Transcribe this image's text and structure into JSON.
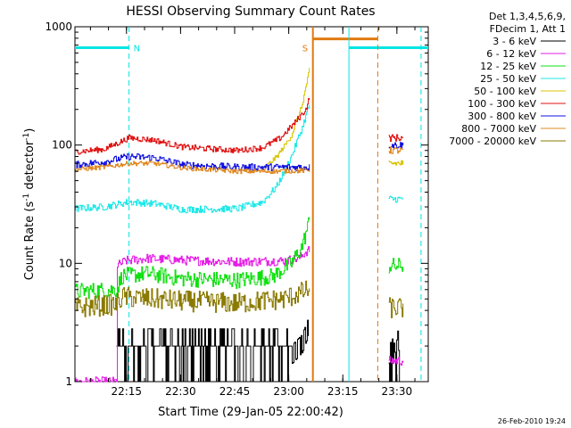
{
  "chart_data": {
    "type": "line",
    "title": "HESSI Observing Summary Count Rates",
    "xlabel": "Start Time (29-Jan-05 22:00:42)",
    "ylabel_main": "Count Rate (s",
    "ylabel_sup1": "-1",
    "ylabel_mid": " detector",
    "ylabel_sup2": "-1",
    "ylabel_end": ")",
    "y_scale": "log",
    "ylim": [
      1,
      1000
    ],
    "xlim_minutes": [
      0,
      98
    ],
    "y_ticks": [
      {
        "label": "1000",
        "value": 1000
      },
      {
        "label": "100",
        "value": 100
      },
      {
        "label": "10",
        "value": 10
      },
      {
        "label": "1",
        "value": 1
      }
    ],
    "x_ticks": [
      {
        "label": "22:15",
        "minutes": 14.3
      },
      {
        "label": "22:30",
        "minutes": 29.3
      },
      {
        "label": "22:45",
        "minutes": 44.3
      },
      {
        "label": "23:00",
        "minutes": 59.3
      },
      {
        "label": "23:15",
        "minutes": 74.3
      },
      {
        "label": "23:30",
        "minutes": 89.3
      }
    ],
    "legend_header": [
      "Det 1,3,4,5,6,9,",
      "FDecim 1, Att 1"
    ],
    "legend_placement": "right",
    "footer_date": "26-Feb-2010 19:24",
    "flags": {
      "night_label": "N",
      "saa_label": "S",
      "night_color": "#00e5e5",
      "saa_color": "#e07a10",
      "night_bars": [
        [
          0,
          15
        ],
        [
          76,
          98
        ]
      ],
      "night_lines": [
        15,
        76,
        96
      ],
      "saa_bar": [
        66,
        84
      ],
      "saa_lines": [
        66,
        84
      ],
      "data_gap": [
        65,
        87
      ],
      "level": 665
    },
    "series": [
      {
        "name": "3 - 6 keV",
        "color": "#000000",
        "points": [
          [
            11.5,
            1
          ],
          [
            13,
            2
          ],
          [
            60,
            2
          ],
          [
            63,
            2.5
          ],
          [
            64.8,
            3.5
          ]
        ],
        "noise": 0.35,
        "end_points": [
          [
            87,
            1.2
          ],
          [
            91,
            1.2
          ]
        ]
      },
      {
        "name": "6 - 12 keV",
        "color": "#e61ee6",
        "points": [
          [
            0,
            1
          ],
          [
            11.5,
            1
          ],
          [
            11.6,
            9.5
          ],
          [
            14,
            10.5
          ],
          [
            20,
            11
          ],
          [
            30,
            10.6
          ],
          [
            45,
            10.3
          ],
          [
            58,
            10.5
          ],
          [
            62,
            11
          ],
          [
            64,
            12.5
          ],
          [
            65,
            13
          ]
        ],
        "noise": 0.04,
        "end_points": [
          [
            87,
            1.5
          ],
          [
            91,
            1.5
          ]
        ]
      },
      {
        "name": "12 - 25 keV",
        "color": "#10e010",
        "points": [
          [
            0,
            5.8
          ],
          [
            11.5,
            6
          ],
          [
            13,
            7.8
          ],
          [
            20,
            8.2
          ],
          [
            30,
            7.4
          ],
          [
            45,
            7.2
          ],
          [
            55,
            7.8
          ],
          [
            60,
            10
          ],
          [
            63,
            14
          ],
          [
            65,
            23
          ]
        ],
        "noise": 0.07,
        "end_points": [
          [
            87,
            9.5
          ],
          [
            91,
            9.5
          ]
        ]
      },
      {
        "name": "25 - 50 keV",
        "color": "#20e8e8",
        "points": [
          [
            0,
            29
          ],
          [
            8,
            30
          ],
          [
            15,
            33
          ],
          [
            22,
            32
          ],
          [
            30,
            28.5
          ],
          [
            45,
            29
          ],
          [
            52,
            33
          ],
          [
            56,
            45
          ],
          [
            60,
            80
          ],
          [
            63,
            140
          ],
          [
            65,
            220
          ]
        ],
        "noise": 0.03,
        "end_points": [
          [
            87,
            35
          ],
          [
            91,
            35
          ]
        ]
      },
      {
        "name": "50 - 100 keV",
        "color": "#d8c400",
        "points": [
          [
            52,
            62
          ],
          [
            56,
            80
          ],
          [
            60,
            120
          ],
          [
            63,
            220
          ],
          [
            65,
            430
          ]
        ],
        "noise": 0.02,
        "end_points": [
          [
            87,
            70
          ],
          [
            91,
            70
          ]
        ]
      },
      {
        "name": "100 - 300 keV",
        "color": "#e01010",
        "points": [
          [
            0,
            88
          ],
          [
            8,
            92
          ],
          [
            15,
            115
          ],
          [
            22,
            110
          ],
          [
            30,
            96
          ],
          [
            45,
            90
          ],
          [
            52,
            95
          ],
          [
            57,
            115
          ],
          [
            61,
            155
          ],
          [
            64,
            200
          ],
          [
            65,
            250
          ]
        ],
        "noise": 0.025,
        "end_points": [
          [
            87,
            115
          ],
          [
            91,
            115
          ]
        ]
      },
      {
        "name": "300 - 800 keV",
        "color": "#1010e0",
        "points": [
          [
            0,
            68
          ],
          [
            8,
            72
          ],
          [
            15,
            80
          ],
          [
            22,
            78
          ],
          [
            30,
            68
          ],
          [
            45,
            65
          ],
          [
            55,
            65
          ],
          [
            65,
            65
          ]
        ],
        "noise": 0.03,
        "end_points": [
          [
            87,
            100
          ],
          [
            91,
            98
          ]
        ]
      },
      {
        "name": "800 - 7000 keV",
        "color": "#e08820",
        "points": [
          [
            0,
            62
          ],
          [
            8,
            65
          ],
          [
            15,
            70
          ],
          [
            22,
            70
          ],
          [
            30,
            64
          ],
          [
            45,
            60
          ],
          [
            55,
            60
          ],
          [
            65,
            61
          ]
        ],
        "noise": 0.02,
        "end_points": [
          [
            87,
            90
          ],
          [
            91,
            90
          ]
        ]
      },
      {
        "name": "7000 - 20000 keV",
        "color": "#8a7a00",
        "points": [
          [
            0,
            4.2
          ],
          [
            11.5,
            4.5
          ],
          [
            13,
            5.2
          ],
          [
            30,
            4.8
          ],
          [
            45,
            4.6
          ],
          [
            58,
            5
          ],
          [
            65,
            6
          ]
        ],
        "noise": 0.09,
        "end_points": [
          [
            87,
            4.2
          ],
          [
            91,
            4.2
          ]
        ]
      }
    ]
  }
}
